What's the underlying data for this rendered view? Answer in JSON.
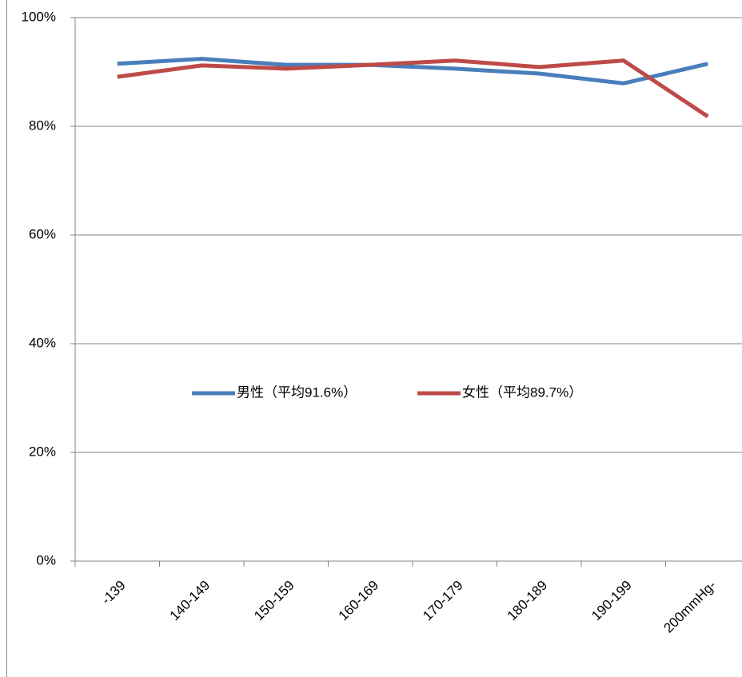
{
  "chart_data": {
    "type": "line",
    "categories": [
      "-139",
      "140-149",
      "150-159",
      "160-169",
      "170-179",
      "180-189",
      "190-199",
      "200mmHg-"
    ],
    "series": [
      {
        "name": "男性（平均91.6%）",
        "color": "#4a7ebb",
        "values": [
          91.5,
          92.4,
          91.3,
          91.3,
          90.6,
          89.7,
          87.9,
          91.5
        ]
      },
      {
        "name": "女性（平均89.7%）",
        "color": "#be4b48",
        "values": [
          89.1,
          91.2,
          90.6,
          91.3,
          92.1,
          90.9,
          92.1,
          81.8
        ]
      }
    ],
    "ylim": [
      0,
      100
    ],
    "yticks": [
      {
        "value": 0,
        "label": "0%"
      },
      {
        "value": 20,
        "label": "20%"
      },
      {
        "value": 40,
        "label": "40%"
      },
      {
        "value": 60,
        "label": "60%"
      },
      {
        "value": 80,
        "label": "80%"
      },
      {
        "value": 100,
        "label": "100%"
      }
    ],
    "grid": true,
    "legend": "center"
  }
}
